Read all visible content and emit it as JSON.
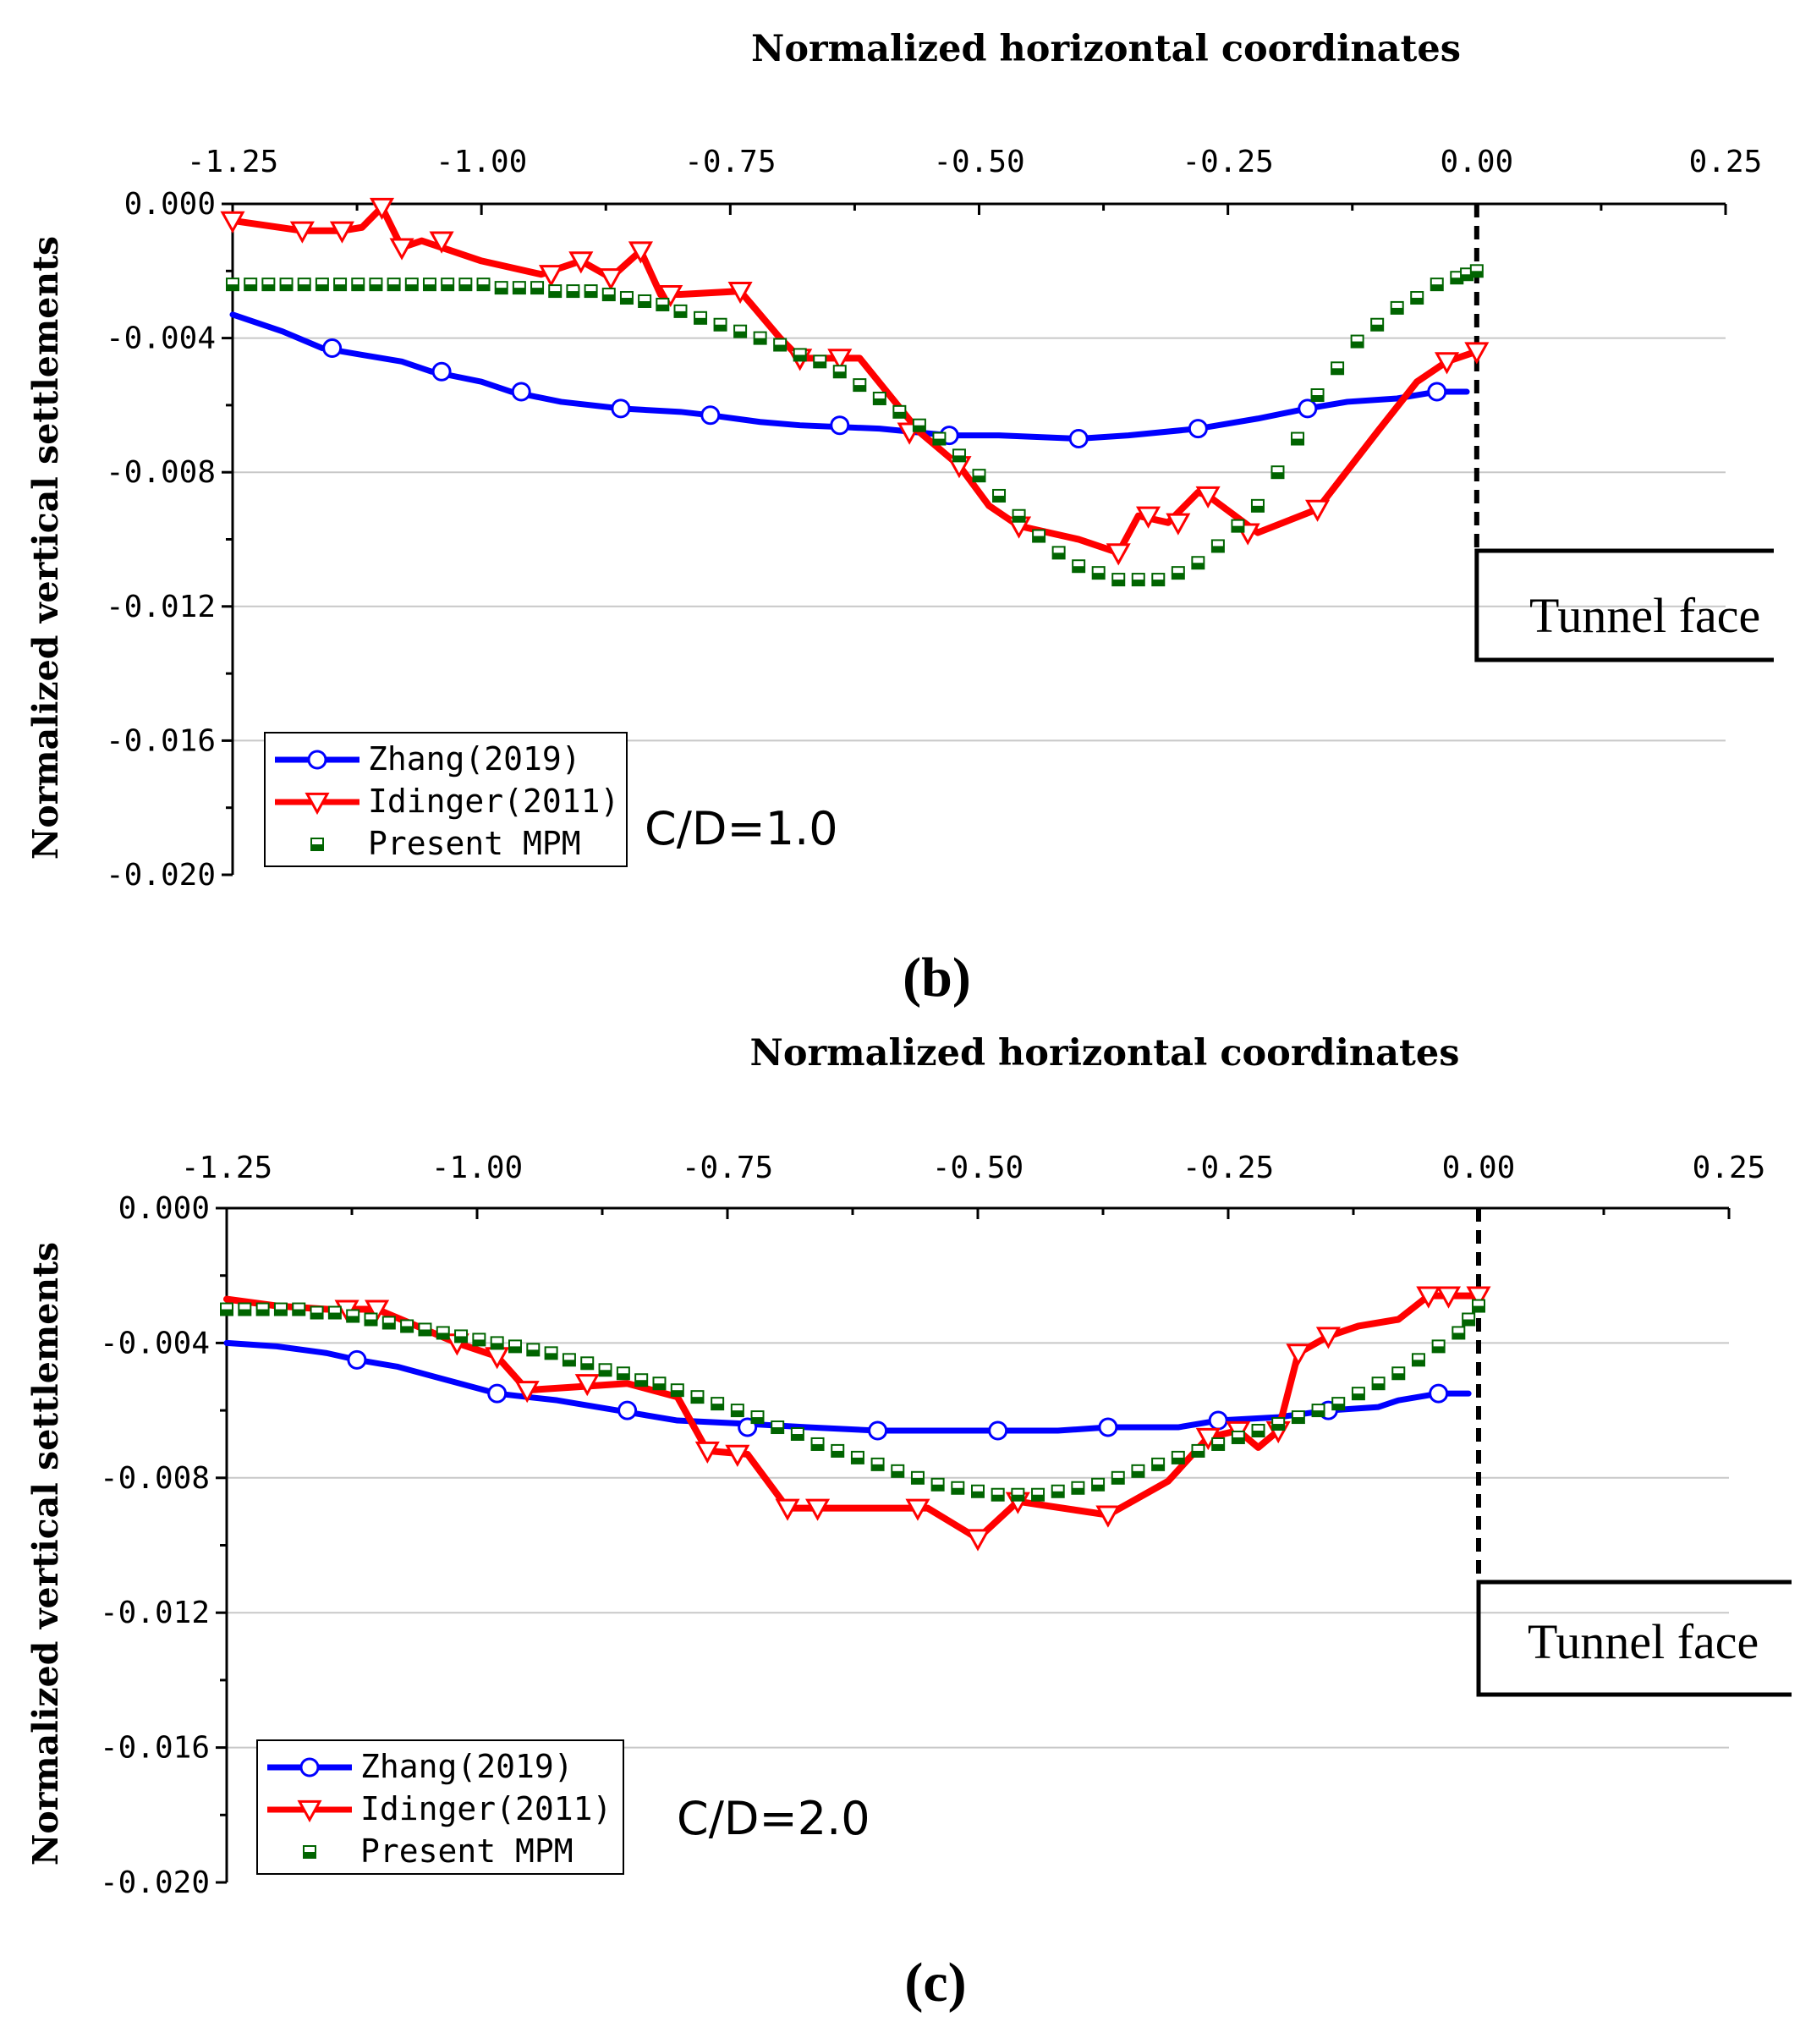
{
  "colors": {
    "zhang": "#0000ff",
    "idinger": "#ff0000",
    "mpm": "#006400",
    "grid": "#c8c8c8",
    "axis": "#000000"
  },
  "chart_data": [
    {
      "id": "b",
      "type": "line",
      "panel_label": "(b)",
      "title": "",
      "xlabel": "Normalized  horizontal coordinates",
      "ylabel": "Normalized vertical settlements",
      "xlim": [
        -1.25,
        0.25
      ],
      "ylim": [
        -0.02,
        0.0
      ],
      "x_ticks": [
        "-1.25",
        "-1.00",
        "-0.75",
        "-0.50",
        "-0.25",
        "0.00",
        "0.25"
      ],
      "y_ticks": [
        "0.000",
        "-0.004",
        "-0.008",
        "-0.012",
        "-0.016",
        "-0.020"
      ],
      "grid": "horizontal",
      "legend_position": "bottom-left",
      "annotation": "C/D=1.0",
      "tunnel_face_label": "Tunnel face",
      "series": [
        {
          "name": "Zhang(2019)",
          "marker": "circle",
          "x": [
            -1.25,
            -1.2,
            -1.16,
            -1.12,
            -1.08,
            -1.05,
            -1.0,
            -0.97,
            -0.92,
            -0.86,
            -0.8,
            -0.77,
            -0.72,
            -0.68,
            -0.6,
            -0.53,
            -0.48,
            -0.4,
            -0.35,
            -0.28,
            -0.22,
            -0.17,
            -0.13,
            -0.08,
            -0.04,
            -0.01
          ],
          "y": [
            -0.0033,
            -0.0038,
            -0.0043,
            -0.0045,
            -0.0047,
            -0.005,
            -0.0053,
            -0.0056,
            -0.0059,
            -0.0061,
            -0.0062,
            -0.0063,
            -0.0065,
            -0.0066,
            -0.0067,
            -0.0069,
            -0.0069,
            -0.007,
            -0.0069,
            -0.0067,
            -0.0064,
            -0.0061,
            -0.0059,
            -0.0058,
            -0.0056,
            -0.0056
          ],
          "marker_x": [
            -1.15,
            -1.04,
            -0.96,
            -0.86,
            -0.77,
            -0.64,
            -0.53,
            -0.4,
            -0.28,
            -0.17,
            -0.04
          ],
          "marker_y": [
            -0.0043,
            -0.005,
            -0.0056,
            -0.0061,
            -0.0063,
            -0.0066,
            -0.0069,
            -0.007,
            -0.0067,
            -0.0061,
            -0.0056
          ]
        },
        {
          "name": "Idinger(2011)",
          "marker": "triangle-down",
          "x": [
            -1.25,
            -1.18,
            -1.14,
            -1.12,
            -1.1,
            -1.08,
            -1.06,
            -1.0,
            -0.94,
            -0.9,
            -0.87,
            -0.84,
            -0.82,
            -0.8,
            -0.74,
            -0.7,
            -0.68,
            -0.62,
            -0.56,
            -0.52,
            -0.49,
            -0.46,
            -0.4,
            -0.36,
            -0.34,
            -0.31,
            -0.29,
            -0.28,
            -0.27,
            -0.22,
            -0.16,
            -0.1,
            -0.06,
            -0.03,
            0.0
          ],
          "y": [
            -0.0005,
            -0.0008,
            -0.0008,
            -0.0007,
            -0.0001,
            -0.0013,
            -0.0011,
            -0.0017,
            -0.0021,
            -0.0017,
            -0.0022,
            -0.0014,
            -0.0027,
            -0.0027,
            -0.0026,
            -0.004,
            -0.0046,
            -0.0046,
            -0.0068,
            -0.0078,
            -0.009,
            -0.0096,
            -0.01,
            -0.0104,
            -0.0093,
            -0.0095,
            -0.0089,
            -0.0086,
            -0.0087,
            -0.0098,
            -0.0091,
            -0.0068,
            -0.0053,
            -0.0047,
            -0.0044
          ],
          "marker_x": [
            -1.25,
            -1.18,
            -1.14,
            -1.1,
            -1.08,
            -1.04,
            -0.93,
            -0.9,
            -0.87,
            -0.84,
            -0.81,
            -0.74,
            -0.68,
            -0.64,
            -0.57,
            -0.52,
            -0.46,
            -0.36,
            -0.33,
            -0.3,
            -0.27,
            -0.23,
            -0.16,
            -0.03,
            0.0
          ],
          "marker_y": [
            -0.0005,
            -0.0008,
            -0.0008,
            -0.0001,
            -0.0013,
            -0.0011,
            -0.0021,
            -0.0017,
            -0.0022,
            -0.0014,
            -0.0027,
            -0.0026,
            -0.0046,
            -0.0046,
            -0.0068,
            -0.0078,
            -0.0096,
            -0.0104,
            -0.0093,
            -0.0095,
            -0.0087,
            -0.0098,
            -0.0091,
            -0.0047,
            -0.0044
          ]
        },
        {
          "name": "Present MPM",
          "marker": "half-filled-square",
          "x": [
            -1.25,
            -1.232,
            -1.214,
            -1.196,
            -1.178,
            -1.16,
            -1.142,
            -1.124,
            -1.106,
            -1.088,
            -1.07,
            -1.052,
            -1.034,
            -1.016,
            -0.998,
            -0.98,
            -0.962,
            -0.944,
            -0.926,
            -0.908,
            -0.89,
            -0.872,
            -0.854,
            -0.836,
            -0.818,
            -0.8,
            -0.78,
            -0.76,
            -0.74,
            -0.72,
            -0.7,
            -0.68,
            -0.66,
            -0.64,
            -0.62,
            -0.6,
            -0.58,
            -0.56,
            -0.54,
            -0.52,
            -0.5,
            -0.48,
            -0.46,
            -0.44,
            -0.42,
            -0.4,
            -0.38,
            -0.36,
            -0.34,
            -0.32,
            -0.3,
            -0.28,
            -0.26,
            -0.24,
            -0.22,
            -0.2,
            -0.18,
            -0.16,
            -0.14,
            -0.12,
            -0.1,
            -0.08,
            -0.06,
            -0.04,
            -0.02,
            -0.01,
            0.0
          ],
          "y": [
            -0.0024,
            -0.0024,
            -0.0024,
            -0.0024,
            -0.0024,
            -0.0024,
            -0.0024,
            -0.0024,
            -0.0024,
            -0.0024,
            -0.0024,
            -0.0024,
            -0.0024,
            -0.0024,
            -0.0024,
            -0.0025,
            -0.0025,
            -0.0025,
            -0.0026,
            -0.0026,
            -0.0026,
            -0.0027,
            -0.0028,
            -0.0029,
            -0.003,
            -0.0032,
            -0.0034,
            -0.0036,
            -0.0038,
            -0.004,
            -0.0042,
            -0.0045,
            -0.0047,
            -0.005,
            -0.0054,
            -0.0058,
            -0.0062,
            -0.0066,
            -0.007,
            -0.0075,
            -0.0081,
            -0.0087,
            -0.0093,
            -0.0099,
            -0.0104,
            -0.0108,
            -0.011,
            -0.0112,
            -0.0112,
            -0.0112,
            -0.011,
            -0.0107,
            -0.0102,
            -0.0096,
            -0.009,
            -0.008,
            -0.007,
            -0.0057,
            -0.0049,
            -0.0041,
            -0.0036,
            -0.0031,
            -0.0028,
            -0.0024,
            -0.0022,
            -0.0021,
            -0.002
          ]
        }
      ]
    },
    {
      "id": "c",
      "type": "line",
      "panel_label": "(c)",
      "title": "",
      "xlabel": "Normalized  horizontal coordinates",
      "ylabel": "Normalized vertical settlements",
      "xlim": [
        -1.25,
        0.25
      ],
      "ylim": [
        -0.02,
        0.0
      ],
      "x_ticks": [
        "-1.25",
        "-1.00",
        "-0.75",
        "-0.50",
        "-0.25",
        "0.00",
        "0.25"
      ],
      "y_ticks": [
        "0.000",
        "-0.004",
        "-0.008",
        "-0.012",
        "-0.016",
        "-0.020"
      ],
      "grid": "horizontal",
      "legend_position": "bottom-left",
      "annotation": "C/D=2.0",
      "tunnel_face_label": "Tunnel face",
      "series": [
        {
          "name": "Zhang(2019)",
          "marker": "circle",
          "x": [
            -1.25,
            -1.2,
            -1.15,
            -1.12,
            -1.08,
            -1.03,
            -0.98,
            -0.92,
            -0.86,
            -0.8,
            -0.73,
            -0.67,
            -0.6,
            -0.53,
            -0.48,
            -0.42,
            -0.37,
            -0.3,
            -0.26,
            -0.2,
            -0.15,
            -0.1,
            -0.08,
            -0.04,
            -0.01
          ],
          "y": [
            -0.004,
            -0.0041,
            -0.0043,
            -0.0045,
            -0.0047,
            -0.0051,
            -0.0055,
            -0.0057,
            -0.006,
            -0.0063,
            -0.0064,
            -0.0065,
            -0.0066,
            -0.0066,
            -0.0066,
            -0.0066,
            -0.0065,
            -0.0065,
            -0.0063,
            -0.0062,
            -0.006,
            -0.0059,
            -0.0057,
            -0.0055,
            -0.0055
          ],
          "marker_x": [
            -1.12,
            -0.98,
            -0.85,
            -0.73,
            -0.6,
            -0.48,
            -0.37,
            -0.26,
            -0.15,
            -0.04
          ],
          "marker_y": [
            -0.0045,
            -0.0055,
            -0.006,
            -0.0065,
            -0.0066,
            -0.0066,
            -0.0065,
            -0.0063,
            -0.006,
            -0.0055
          ]
        },
        {
          "name": "Idinger(2011)",
          "marker": "triangle-down",
          "x": [
            -1.25,
            -1.2,
            -1.15,
            -1.13,
            -1.1,
            -1.06,
            -1.02,
            -0.98,
            -0.95,
            -0.9,
            -0.85,
            -0.8,
            -0.77,
            -0.73,
            -0.69,
            -0.65,
            -0.55,
            -0.5,
            -0.46,
            -0.37,
            -0.31,
            -0.27,
            -0.24,
            -0.22,
            -0.2,
            -0.18,
            -0.15,
            -0.12,
            -0.08,
            -0.05,
            -0.02,
            0.0
          ],
          "y": [
            -0.0027,
            -0.0029,
            -0.003,
            -0.003,
            -0.003,
            -0.0035,
            -0.004,
            -0.0044,
            -0.0054,
            -0.0053,
            -0.0052,
            -0.0056,
            -0.0072,
            -0.0073,
            -0.0089,
            -0.0089,
            -0.0089,
            -0.0098,
            -0.0087,
            -0.0091,
            -0.0081,
            -0.0068,
            -0.0066,
            -0.0071,
            -0.0066,
            -0.0043,
            -0.0038,
            -0.0035,
            -0.0033,
            -0.0026,
            -0.0026,
            -0.0026
          ],
          "marker_x": [
            -1.13,
            -1.1,
            -1.02,
            -0.98,
            -0.95,
            -0.89,
            -0.77,
            -0.74,
            -0.69,
            -0.66,
            -0.56,
            -0.5,
            -0.46,
            -0.37,
            -0.27,
            -0.24,
            -0.2,
            -0.18,
            -0.15,
            -0.05,
            -0.03,
            0.0
          ],
          "marker_y": [
            -0.003,
            -0.003,
            -0.004,
            -0.0044,
            -0.0054,
            -0.0052,
            -0.0072,
            -0.0073,
            -0.0089,
            -0.0089,
            -0.0089,
            -0.0098,
            -0.0087,
            -0.0091,
            -0.0068,
            -0.0066,
            -0.0066,
            -0.0043,
            -0.0038,
            -0.0026,
            -0.0026,
            -0.0026
          ]
        },
        {
          "name": "Present MPM",
          "marker": "half-filled-square",
          "x": [
            -1.25,
            -1.232,
            -1.214,
            -1.196,
            -1.178,
            -1.16,
            -1.142,
            -1.124,
            -1.106,
            -1.088,
            -1.07,
            -1.052,
            -1.034,
            -1.016,
            -0.998,
            -0.98,
            -0.962,
            -0.944,
            -0.926,
            -0.908,
            -0.89,
            -0.872,
            -0.854,
            -0.836,
            -0.818,
            -0.8,
            -0.78,
            -0.76,
            -0.74,
            -0.72,
            -0.7,
            -0.68,
            -0.66,
            -0.64,
            -0.62,
            -0.6,
            -0.58,
            -0.56,
            -0.54,
            -0.52,
            -0.5,
            -0.48,
            -0.46,
            -0.44,
            -0.42,
            -0.4,
            -0.38,
            -0.36,
            -0.34,
            -0.32,
            -0.3,
            -0.28,
            -0.26,
            -0.24,
            -0.22,
            -0.2,
            -0.18,
            -0.16,
            -0.14,
            -0.12,
            -0.1,
            -0.08,
            -0.06,
            -0.04,
            -0.02,
            -0.01,
            0.0
          ],
          "y": [
            -0.003,
            -0.003,
            -0.003,
            -0.003,
            -0.003,
            -0.0031,
            -0.0031,
            -0.0032,
            -0.0033,
            -0.0034,
            -0.0035,
            -0.0036,
            -0.0037,
            -0.0038,
            -0.0039,
            -0.004,
            -0.0041,
            -0.0042,
            -0.0043,
            -0.0045,
            -0.0046,
            -0.0048,
            -0.0049,
            -0.0051,
            -0.0052,
            -0.0054,
            -0.0056,
            -0.0058,
            -0.006,
            -0.0062,
            -0.0065,
            -0.0067,
            -0.007,
            -0.0072,
            -0.0074,
            -0.0076,
            -0.0078,
            -0.008,
            -0.0082,
            -0.0083,
            -0.0084,
            -0.0085,
            -0.0085,
            -0.0085,
            -0.0084,
            -0.0083,
            -0.0082,
            -0.008,
            -0.0078,
            -0.0076,
            -0.0074,
            -0.0072,
            -0.007,
            -0.0068,
            -0.0066,
            -0.0064,
            -0.0062,
            -0.006,
            -0.0058,
            -0.0055,
            -0.0052,
            -0.0049,
            -0.0045,
            -0.0041,
            -0.0037,
            -0.0033,
            -0.0029
          ]
        }
      ]
    }
  ]
}
